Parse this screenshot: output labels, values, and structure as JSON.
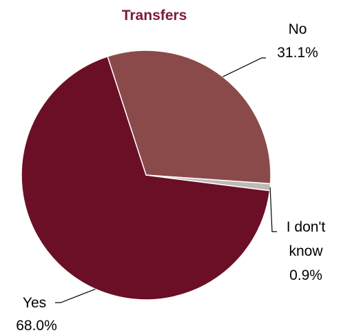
{
  "chart_data": {
    "type": "pie",
    "title": "Transfers",
    "slices": [
      {
        "name": "No",
        "value": 31.1,
        "value_label": "31.1%",
        "color": "#8b4a4a"
      },
      {
        "name": "I don't know",
        "value": 0.9,
        "value_label": "0.9%",
        "color": "#bfb8b8"
      },
      {
        "name": "Yes",
        "value": 68.0,
        "value_label": "68.0%",
        "color": "#6b0f26"
      }
    ],
    "start_position": "top",
    "direction": "clockwise",
    "legend": "none",
    "title_color": "#7b1b36"
  }
}
